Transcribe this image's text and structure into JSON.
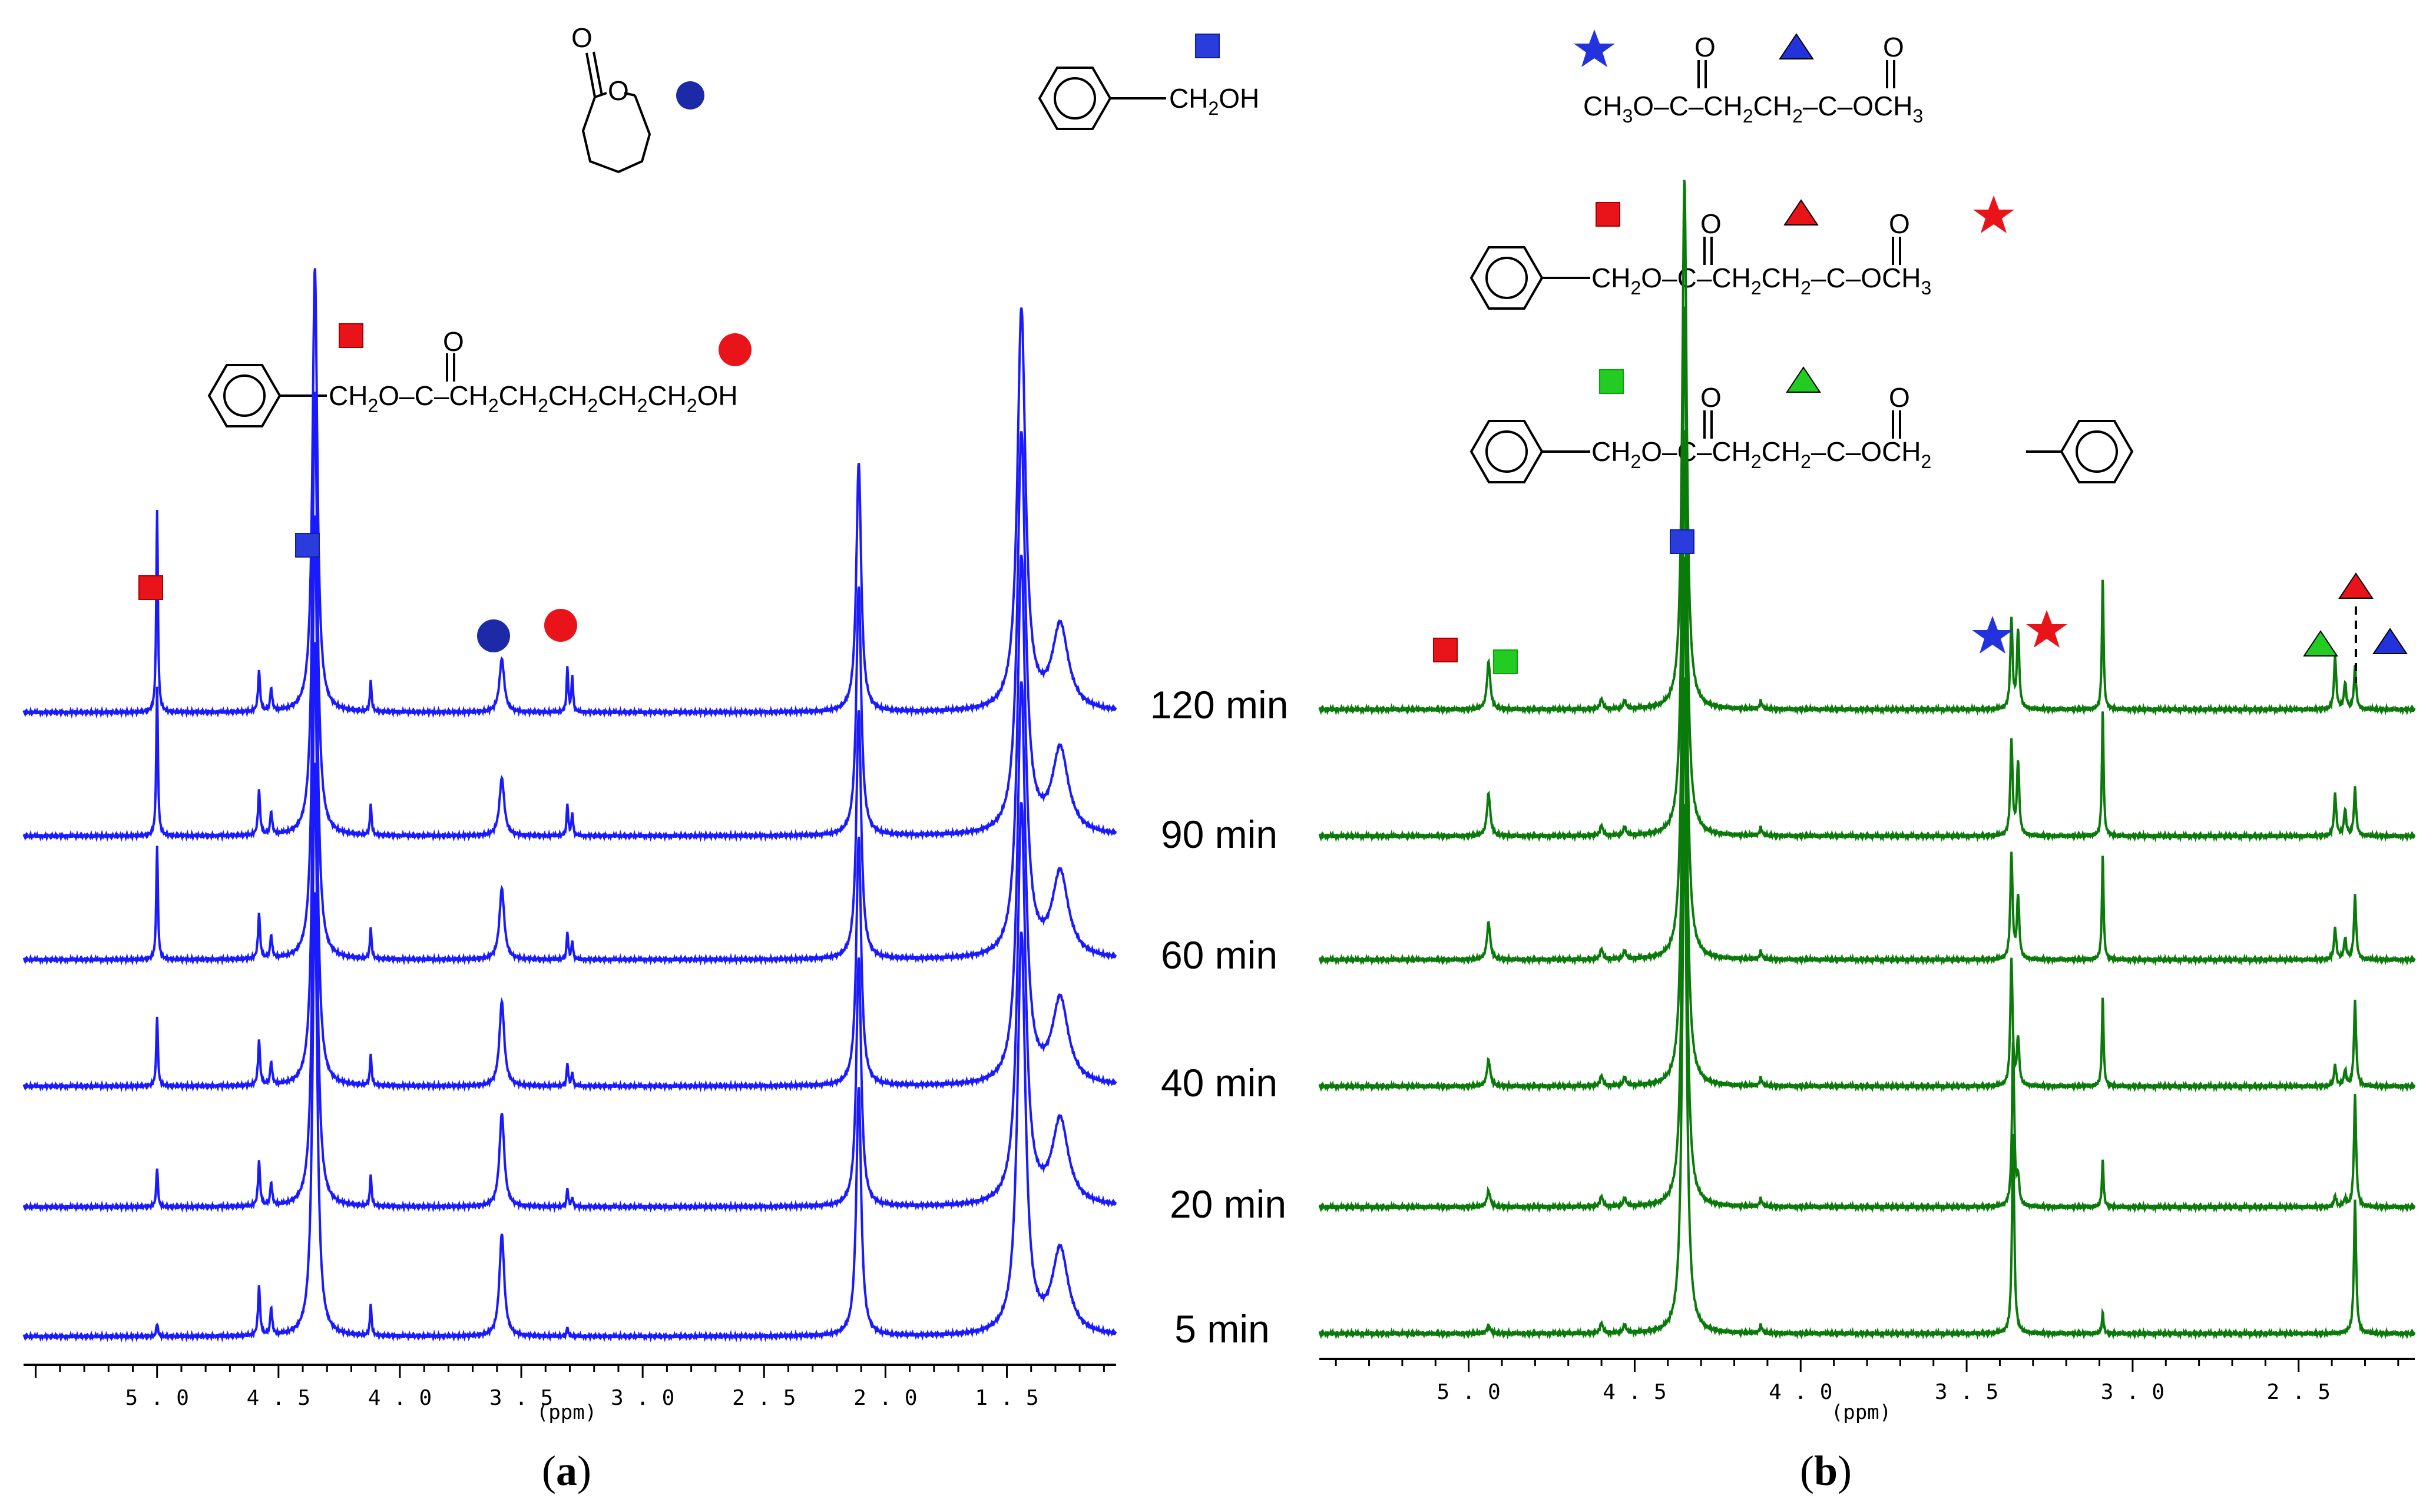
{
  "figure_labels": {
    "a": "a",
    "b": "b"
  },
  "time_labels": [
    "120 min",
    "90 min",
    "60 min",
    "40 min",
    "20 min",
    "5 min"
  ],
  "structures": {
    "caprolactone": {
      "carbonyl_O": "O",
      "ring_O": "O"
    },
    "benzyl_alcohol": {
      "group": "CH",
      "sub2": "2",
      "tail": "OH"
    },
    "product_a": {
      "o_top": "O",
      "seg1": "CH",
      "s1": "2",
      "seg2": "O–C–CH",
      "s2": "2",
      "seg3": "CH",
      "s3": "2",
      "seg4": "CH",
      "s4": "2",
      "seg5": "CH",
      "s5": "2",
      "seg6": "CH",
      "s6": "2",
      "tail": "OH"
    },
    "dimethyl_succinate": {
      "o1": "O",
      "o2": "O",
      "left": "CH",
      "l3": "3",
      "mid": "O–C–CH",
      "m2": "2",
      "mid2": "CH",
      "m2b": "2",
      "mid3": "–C–OCH",
      "r3": "3"
    },
    "benzyl_methyl_succinate": {
      "o1": "O",
      "o2": "O",
      "left": "CH",
      "l2": "2",
      "mid": "O–C–CH",
      "m2": "2",
      "mid2": "CH",
      "m2b": "2",
      "mid3": "–C–OCH",
      "r3": "3"
    },
    "dibenzyl_succinate": {
      "o1": "O",
      "o2": "O",
      "left": "CH",
      "l2": "2",
      "mid": "O–C–CH",
      "m2": "2",
      "mid2": "CH",
      "m2b": "2",
      "mid3": "–C–OCH",
      "r2": "2"
    }
  },
  "colors": {
    "spectrum_a": "#1a1aff",
    "spectrum_b": "#0a7a0a",
    "red": "#e8141a",
    "blue": "#2233dd",
    "green": "#22cc22",
    "navy": "#1c2aa8"
  },
  "chart_data": [
    {
      "type": "line",
      "id": "a",
      "xlabel": "(ppm)",
      "x_range": [
        5.55,
        1.05
      ],
      "ticks": [
        5.0,
        4.5,
        4.0,
        3.5,
        3.0,
        2.5,
        2.0,
        1.5
      ],
      "tick_labels": [
        "5.0",
        "4.5",
        "4.0",
        "3.5",
        "3.0",
        "2.5",
        "2.0",
        "1.5"
      ],
      "series": [
        {
          "name": "120 min",
          "peaks": [
            [
              5.0,
              0.46,
              0.004
            ],
            [
              4.58,
              0.09,
              0.005
            ],
            [
              4.53,
              0.05,
              0.005
            ],
            [
              4.35,
              1.0,
              0.012
            ],
            [
              4.12,
              0.07,
              0.004
            ],
            [
              3.58,
              0.12,
              0.012
            ],
            [
              3.31,
              0.1,
              0.004
            ],
            [
              3.29,
              0.08,
              0.004
            ],
            [
              2.11,
              0.56,
              0.012
            ],
            [
              1.44,
              0.9,
              0.02
            ],
            [
              1.28,
              0.19,
              0.04
            ]
          ]
        },
        {
          "name": "90 min",
          "peaks": [
            [
              5.0,
              0.34,
              0.004
            ],
            [
              4.58,
              0.1,
              0.005
            ],
            [
              4.53,
              0.05,
              0.005
            ],
            [
              4.35,
              1.0,
              0.012
            ],
            [
              4.12,
              0.07,
              0.004
            ],
            [
              3.58,
              0.13,
              0.012
            ],
            [
              3.31,
              0.07,
              0.004
            ],
            [
              3.29,
              0.05,
              0.004
            ],
            [
              2.11,
              0.56,
              0.012
            ],
            [
              1.44,
              0.9,
              0.02
            ],
            [
              1.28,
              0.19,
              0.04
            ]
          ]
        },
        {
          "name": "60 min",
          "peaks": [
            [
              5.0,
              0.26,
              0.004
            ],
            [
              4.58,
              0.1,
              0.005
            ],
            [
              4.53,
              0.05,
              0.005
            ],
            [
              4.35,
              1.0,
              0.012
            ],
            [
              4.12,
              0.07,
              0.004
            ],
            [
              3.58,
              0.16,
              0.012
            ],
            [
              3.31,
              0.06,
              0.004
            ],
            [
              3.29,
              0.04,
              0.004
            ],
            [
              2.11,
              0.56,
              0.012
            ],
            [
              1.44,
              0.9,
              0.02
            ],
            [
              1.28,
              0.19,
              0.04
            ]
          ]
        },
        {
          "name": "40 min",
          "peaks": [
            [
              5.0,
              0.16,
              0.004
            ],
            [
              4.58,
              0.1,
              0.005
            ],
            [
              4.53,
              0.05,
              0.005
            ],
            [
              4.35,
              1.0,
              0.012
            ],
            [
              4.12,
              0.07,
              0.004
            ],
            [
              3.58,
              0.19,
              0.012
            ],
            [
              3.31,
              0.05,
              0.004
            ],
            [
              3.29,
              0.03,
              0.004
            ],
            [
              2.11,
              0.56,
              0.012
            ],
            [
              1.44,
              0.9,
              0.02
            ],
            [
              1.28,
              0.19,
              0.04
            ]
          ]
        },
        {
          "name": "20 min",
          "peaks": [
            [
              5.0,
              0.09,
              0.004
            ],
            [
              4.58,
              0.1,
              0.005
            ],
            [
              4.53,
              0.05,
              0.005
            ],
            [
              4.35,
              1.0,
              0.012
            ],
            [
              4.12,
              0.07,
              0.004
            ],
            [
              3.58,
              0.21,
              0.012
            ],
            [
              3.31,
              0.04,
              0.004
            ],
            [
              3.29,
              0.02,
              0.004
            ],
            [
              2.11,
              0.56,
              0.012
            ],
            [
              1.44,
              0.9,
              0.02
            ],
            [
              1.28,
              0.19,
              0.04
            ]
          ]
        },
        {
          "name": "5 min",
          "peaks": [
            [
              5.0,
              0.03,
              0.004
            ],
            [
              4.58,
              0.11,
              0.005
            ],
            [
              4.53,
              0.06,
              0.005
            ],
            [
              4.35,
              1.0,
              0.012
            ],
            [
              4.12,
              0.07,
              0.004
            ],
            [
              3.58,
              0.23,
              0.012
            ],
            [
              3.31,
              0.02,
              0.004
            ],
            [
              2.11,
              0.56,
              0.012
            ],
            [
              1.44,
              0.9,
              0.02
            ],
            [
              1.28,
              0.19,
              0.04
            ]
          ]
        }
      ]
    },
    {
      "type": "line",
      "id": "b",
      "xlabel": "(ppm)",
      "x_range": [
        5.45,
        2.15
      ],
      "ticks": [
        5.0,
        4.5,
        4.0,
        3.5,
        3.0,
        2.5
      ],
      "tick_labels": [
        "5.0",
        "4.5",
        "4.0",
        "3.5",
        "3.0",
        "2.5"
      ],
      "series": [
        {
          "name": "120 min",
          "peaks": [
            [
              4.94,
              0.09,
              0.006
            ],
            [
              4.6,
              0.02,
              0.005
            ],
            [
              4.53,
              0.015,
              0.005
            ],
            [
              4.35,
              1.0,
              0.008
            ],
            [
              4.12,
              0.015,
              0.004
            ],
            [
              3.365,
              0.17,
              0.004
            ],
            [
              3.345,
              0.15,
              0.004
            ],
            [
              3.09,
              0.25,
              0.003
            ],
            [
              2.39,
              0.1,
              0.004
            ],
            [
              2.36,
              0.05,
              0.004
            ],
            [
              2.33,
              0.08,
              0.004
            ]
          ]
        },
        {
          "name": "90 min",
          "peaks": [
            [
              4.94,
              0.08,
              0.006
            ],
            [
              4.6,
              0.02,
              0.005
            ],
            [
              4.53,
              0.015,
              0.005
            ],
            [
              4.35,
              1.0,
              0.008
            ],
            [
              4.12,
              0.015,
              0.004
            ],
            [
              3.365,
              0.18,
              0.004
            ],
            [
              3.345,
              0.14,
              0.004
            ],
            [
              3.09,
              0.24,
              0.003
            ],
            [
              2.39,
              0.08,
              0.004
            ],
            [
              2.36,
              0.05,
              0.004
            ],
            [
              2.33,
              0.09,
              0.004
            ]
          ]
        },
        {
          "name": "60 min",
          "peaks": [
            [
              4.94,
              0.07,
              0.006
            ],
            [
              4.6,
              0.02,
              0.005
            ],
            [
              4.53,
              0.015,
              0.005
            ],
            [
              4.35,
              1.0,
              0.008
            ],
            [
              4.12,
              0.015,
              0.004
            ],
            [
              3.365,
              0.2,
              0.004
            ],
            [
              3.345,
              0.12,
              0.004
            ],
            [
              3.09,
              0.2,
              0.003
            ],
            [
              2.39,
              0.06,
              0.004
            ],
            [
              2.36,
              0.04,
              0.004
            ],
            [
              2.33,
              0.12,
              0.004
            ]
          ]
        },
        {
          "name": "40 min",
          "peaks": [
            [
              4.94,
              0.05,
              0.006
            ],
            [
              4.6,
              0.02,
              0.005
            ],
            [
              4.53,
              0.015,
              0.005
            ],
            [
              4.35,
              1.0,
              0.008
            ],
            [
              4.12,
              0.015,
              0.004
            ],
            [
              3.365,
              0.24,
              0.004
            ],
            [
              3.345,
              0.09,
              0.004
            ],
            [
              3.09,
              0.17,
              0.003
            ],
            [
              2.39,
              0.04,
              0.004
            ],
            [
              2.36,
              0.03,
              0.004
            ],
            [
              2.33,
              0.16,
              0.004
            ]
          ]
        },
        {
          "name": "20 min",
          "peaks": [
            [
              4.94,
              0.03,
              0.006
            ],
            [
              4.6,
              0.02,
              0.005
            ],
            [
              4.53,
              0.015,
              0.005
            ],
            [
              4.35,
              1.0,
              0.008
            ],
            [
              4.12,
              0.015,
              0.004
            ],
            [
              3.36,
              0.31,
              0.004
            ],
            [
              3.345,
              0.05,
              0.004
            ],
            [
              3.09,
              0.09,
              0.003
            ],
            [
              2.39,
              0.02,
              0.004
            ],
            [
              2.36,
              0.015,
              0.004
            ],
            [
              2.33,
              0.21,
              0.004
            ]
          ]
        },
        {
          "name": "5 min",
          "peaks": [
            [
              4.94,
              0.015,
              0.006
            ],
            [
              4.6,
              0.02,
              0.005
            ],
            [
              4.53,
              0.015,
              0.005
            ],
            [
              4.35,
              1.0,
              0.008
            ],
            [
              4.12,
              0.015,
              0.004
            ],
            [
              3.36,
              0.38,
              0.004
            ],
            [
              3.09,
              0.04,
              0.003
            ],
            [
              2.33,
              0.25,
              0.004
            ]
          ]
        }
      ]
    }
  ]
}
